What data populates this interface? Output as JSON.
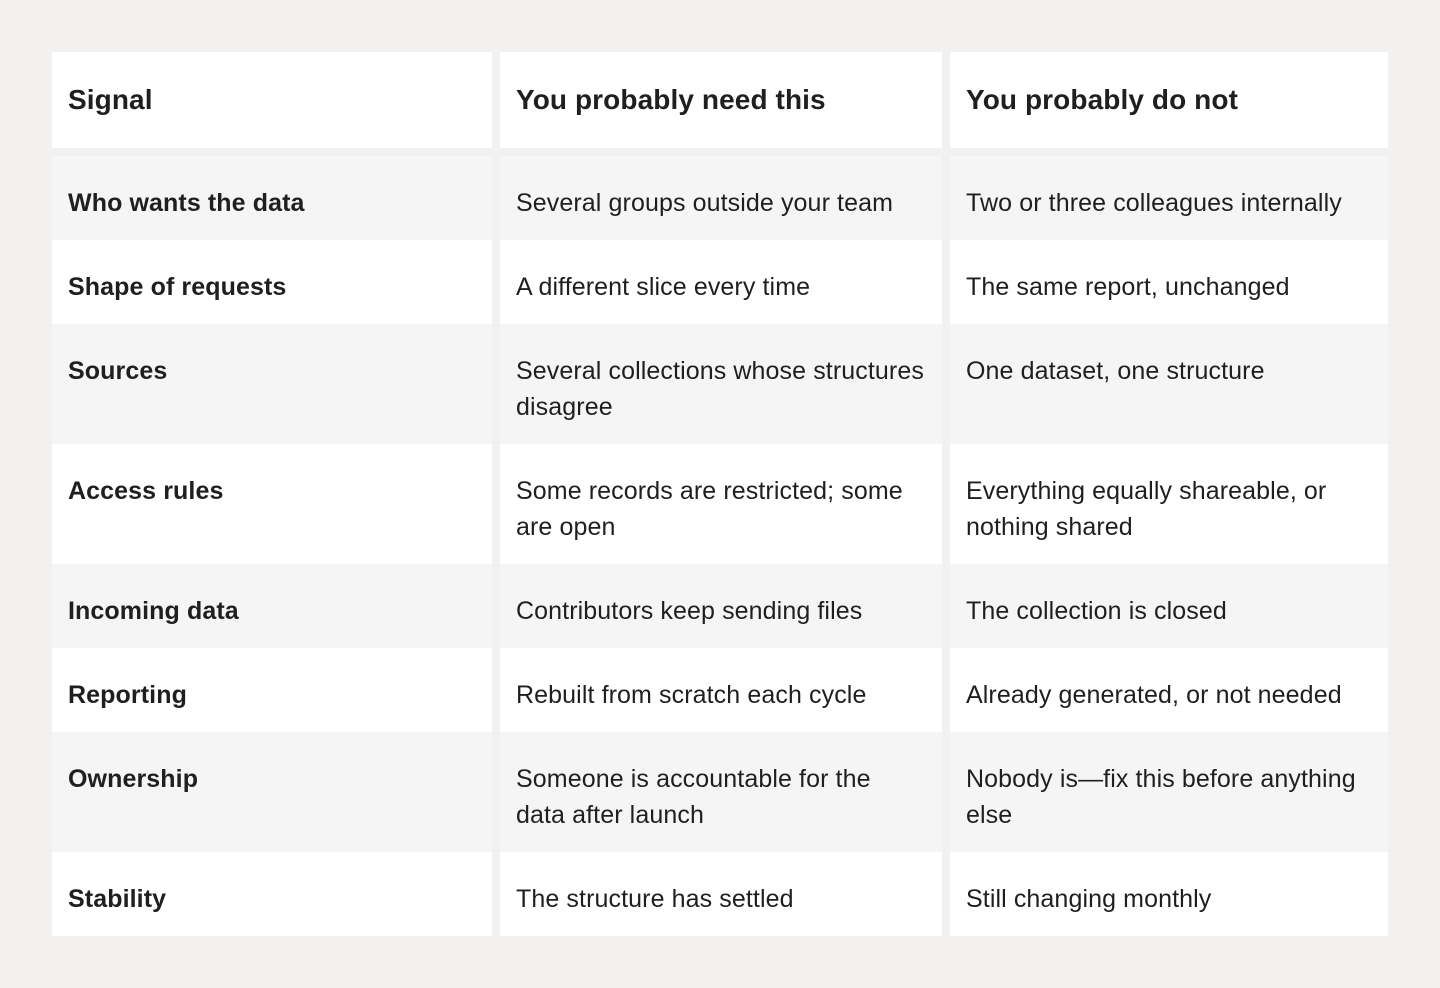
{
  "columns": [
    "Signal",
    "You probably need this",
    "You probably do not"
  ],
  "rows": [
    {
      "signal": "Who wants the data",
      "need": "Several groups outside your team",
      "not": "Two or three colleagues internally"
    },
    {
      "signal": "Shape of requests",
      "need": "A different slice every time",
      "not": "The same report, unchanged"
    },
    {
      "signal": "Sources",
      "need": "Several collections whose structures disagree",
      "not": "One dataset, one structure"
    },
    {
      "signal": "Access rules",
      "need": "Some records are restricted; some are open",
      "not": "Everything equally shareable, or nothing shared"
    },
    {
      "signal": "Incoming data",
      "need": "Contributors keep sending files",
      "not": "The collection is closed"
    },
    {
      "signal": "Reporting",
      "need": "Rebuilt from scratch each cycle",
      "not": "Already generated, or not needed"
    },
    {
      "signal": "Ownership",
      "need": "Someone is accountable for the data after launch",
      "not": "Nobody is—fix this before anything else"
    },
    {
      "signal": "Stability",
      "need": "The structure has settled",
      "not": "Still changing monthly"
    }
  ],
  "colors": {
    "page_background": "#f2f1ef",
    "row_white": "#ffffff",
    "row_gray": "#f5f5f5",
    "text": "#1f1f1f"
  }
}
